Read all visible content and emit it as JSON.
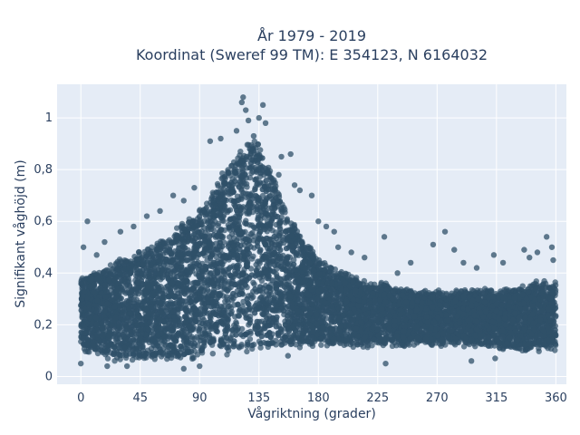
{
  "chart_data": {
    "type": "scatter",
    "title_line1": "År 1979 - 2019",
    "title_line2": "Koordinat (Sweref 99 TM): E 354123, N 6164032",
    "xlabel": "Vågriktning (grader)",
    "ylabel": "Signifikant våghöjd (m)",
    "xlim": [
      -18,
      368
    ],
    "ylim": [
      -0.03,
      1.13
    ],
    "xticks": [
      0,
      45,
      90,
      135,
      180,
      225,
      270,
      315,
      360
    ],
    "xtick_labels": [
      "0",
      "45",
      "90",
      "135",
      "180",
      "225",
      "270",
      "315",
      "360"
    ],
    "yticks": [
      0,
      0.2,
      0.4,
      0.6,
      0.8,
      1
    ],
    "ytick_labels": [
      "0",
      "0,2",
      "0,4",
      "0,6",
      "0,8",
      "1"
    ],
    "grid": true,
    "legend": "none",
    "marker_color": "#2f5068",
    "plot_bg": "#e5ecf6",
    "envelope": {
      "direction": [
        0,
        10,
        20,
        30,
        45,
        60,
        75,
        90,
        100,
        110,
        120,
        125,
        130,
        135,
        140,
        150,
        160,
        170,
        180,
        190,
        200,
        210,
        225,
        240,
        255,
        270,
        285,
        300,
        315,
        330,
        345,
        360
      ],
      "lower_height": [
        0.1,
        0.09,
        0.07,
        0.06,
        0.06,
        0.06,
        0.06,
        0.07,
        0.08,
        0.09,
        0.1,
        0.1,
        0.1,
        0.1,
        0.1,
        0.11,
        0.11,
        0.11,
        0.12,
        0.12,
        0.12,
        0.12,
        0.12,
        0.12,
        0.12,
        0.12,
        0.12,
        0.12,
        0.11,
        0.1,
        0.1,
        0.1
      ],
      "upper_height": [
        0.38,
        0.4,
        0.42,
        0.45,
        0.48,
        0.52,
        0.58,
        0.64,
        0.72,
        0.8,
        0.86,
        0.9,
        0.92,
        0.9,
        0.84,
        0.72,
        0.6,
        0.52,
        0.46,
        0.42,
        0.4,
        0.38,
        0.36,
        0.34,
        0.33,
        0.33,
        0.33,
        0.33,
        0.33,
        0.34,
        0.36,
        0.36
      ]
    },
    "outliers": [
      {
        "x": 123,
        "y": 1.08
      },
      {
        "x": 122,
        "y": 1.06
      },
      {
        "x": 125,
        "y": 1.03
      },
      {
        "x": 138,
        "y": 1.05
      },
      {
        "x": 135,
        "y": 1.0
      },
      {
        "x": 127,
        "y": 0.99
      },
      {
        "x": 140,
        "y": 0.98
      },
      {
        "x": 118,
        "y": 0.95
      },
      {
        "x": 131,
        "y": 0.93
      },
      {
        "x": 98,
        "y": 0.91
      },
      {
        "x": 106,
        "y": 0.92
      },
      {
        "x": 152,
        "y": 0.85
      },
      {
        "x": 159,
        "y": 0.86
      },
      {
        "x": 150,
        "y": 0.78
      },
      {
        "x": 162,
        "y": 0.74
      },
      {
        "x": 166,
        "y": 0.72
      },
      {
        "x": 175,
        "y": 0.7
      },
      {
        "x": 86,
        "y": 0.73
      },
      {
        "x": 78,
        "y": 0.68
      },
      {
        "x": 70,
        "y": 0.7
      },
      {
        "x": 60,
        "y": 0.64
      },
      {
        "x": 50,
        "y": 0.62
      },
      {
        "x": 40,
        "y": 0.58
      },
      {
        "x": 30,
        "y": 0.56
      },
      {
        "x": 5,
        "y": 0.6
      },
      {
        "x": 2,
        "y": 0.5
      },
      {
        "x": 12,
        "y": 0.47
      },
      {
        "x": 18,
        "y": 0.52
      },
      {
        "x": 180,
        "y": 0.6
      },
      {
        "x": 186,
        "y": 0.58
      },
      {
        "x": 192,
        "y": 0.56
      },
      {
        "x": 195,
        "y": 0.5
      },
      {
        "x": 205,
        "y": 0.48
      },
      {
        "x": 215,
        "y": 0.46
      },
      {
        "x": 230,
        "y": 0.54
      },
      {
        "x": 240,
        "y": 0.4
      },
      {
        "x": 250,
        "y": 0.44
      },
      {
        "x": 267,
        "y": 0.51
      },
      {
        "x": 276,
        "y": 0.56
      },
      {
        "x": 283,
        "y": 0.49
      },
      {
        "x": 290,
        "y": 0.44
      },
      {
        "x": 300,
        "y": 0.42
      },
      {
        "x": 313,
        "y": 0.47
      },
      {
        "x": 320,
        "y": 0.44
      },
      {
        "x": 336,
        "y": 0.49
      },
      {
        "x": 346,
        "y": 0.48
      },
      {
        "x": 353,
        "y": 0.54
      },
      {
        "x": 357,
        "y": 0.5
      },
      {
        "x": 340,
        "y": 0.46
      },
      {
        "x": 358,
        "y": 0.45
      },
      {
        "x": 231,
        "y": 0.05
      },
      {
        "x": 296,
        "y": 0.06
      },
      {
        "x": 314,
        "y": 0.07
      },
      {
        "x": 157,
        "y": 0.08
      },
      {
        "x": 90,
        "y": 0.04
      },
      {
        "x": 78,
        "y": 0.03
      },
      {
        "x": 35,
        "y": 0.04
      },
      {
        "x": 20,
        "y": 0.04
      },
      {
        "x": 0,
        "y": 0.05
      }
    ]
  }
}
